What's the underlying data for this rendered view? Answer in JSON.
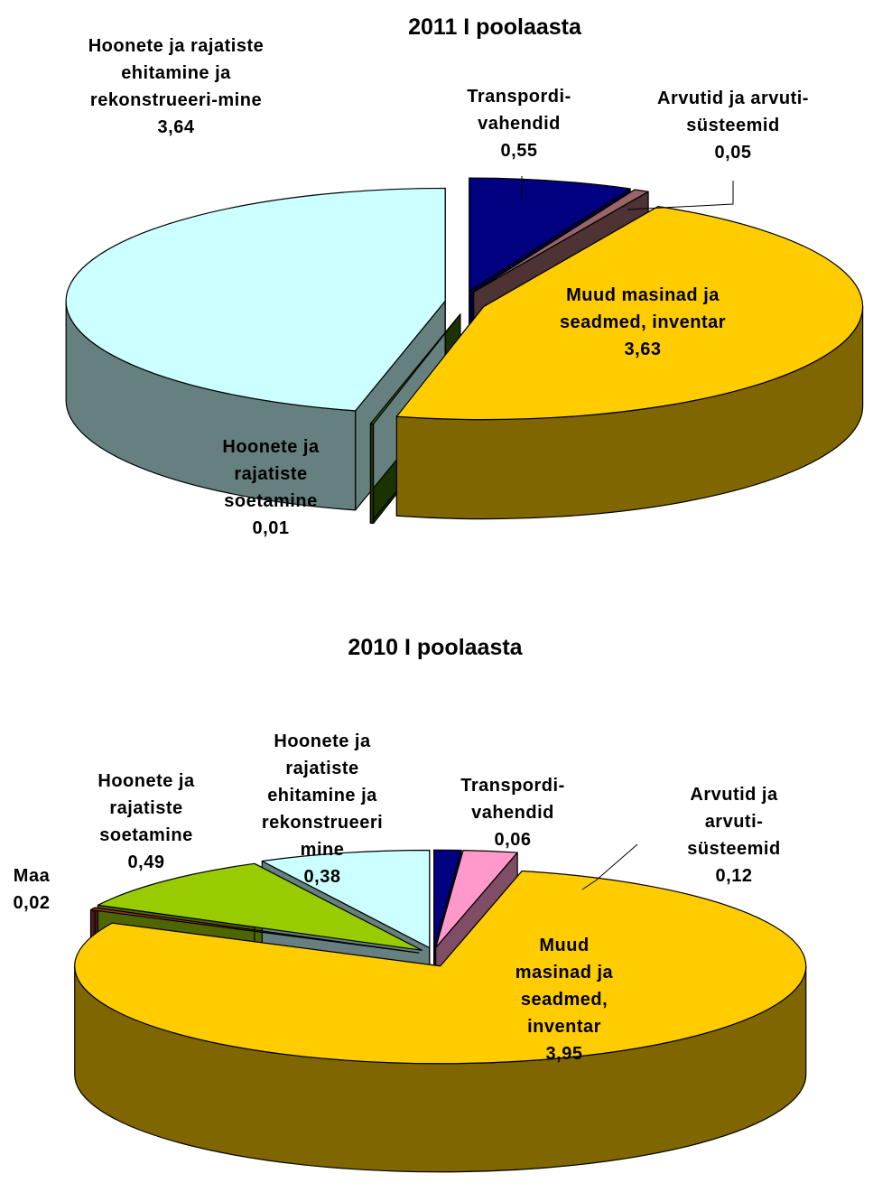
{
  "chart_data": [
    {
      "type": "pie",
      "title": "2011 I poolaasta",
      "categories": [
        "Transpordi-vahendid",
        "Arvutid ja arvuti-süsteemid",
        "Muud masinad ja seadmed, inventar",
        "Hoonete ja rajatiste soetamine",
        "Hoonete ja rajatiste ehitamine ja rekonstrueeri-mine"
      ],
      "values": [
        0.55,
        0.05,
        3.63,
        0.01,
        3.64
      ],
      "value_labels": [
        "0,55",
        "0,05",
        "3,63",
        "0,01",
        "3,64"
      ],
      "colors": [
        "#000080",
        "#996666",
        "#ffcc00",
        "#336600",
        "#ccffff"
      ]
    },
    {
      "type": "pie",
      "title": "2010 I poolaasta",
      "categories": [
        "Transpordi-vahendid",
        "Arvutid ja arvuti-süsteemid",
        "Muud masinad ja seadmed, inventar",
        "Maa",
        "Hoonete ja rajatiste soetamine",
        "Hoonete ja rajatiste ehitamine ja rekonstrueeri mine"
      ],
      "values": [
        0.06,
        0.12,
        3.95,
        0.02,
        0.49,
        0.38
      ],
      "value_labels": [
        "0,06",
        "0,12",
        "3,95",
        "0,02",
        "0,49",
        "0,38"
      ],
      "colors": [
        "#000080",
        "#ff99cc",
        "#ffcc00",
        "#993333",
        "#99cc00",
        "#ccffff"
      ]
    }
  ]
}
